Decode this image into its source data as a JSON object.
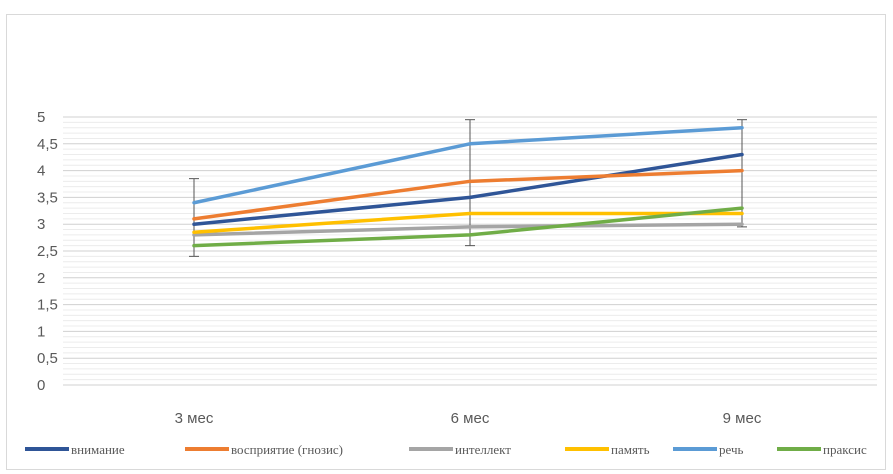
{
  "chart_data": {
    "type": "line",
    "title": "",
    "xlabel": "",
    "ylabel": "",
    "categories": [
      "3 мес",
      "6 мес",
      "9 мес"
    ],
    "ylim": [
      0,
      5
    ],
    "y_ticks": [
      "0",
      "0,5",
      "1",
      "1,5",
      "2",
      "2,5",
      "3",
      "3,5",
      "4",
      "4,5",
      "5"
    ],
    "grid": true,
    "error_bars": true,
    "legend_position": "bottom",
    "series": [
      {
        "name": "внимание",
        "color": "#2f5597",
        "values": [
          3.0,
          3.5,
          4.3
        ]
      },
      {
        "name": "восприятие (гнозис)",
        "color": "#ed7d31",
        "values": [
          3.1,
          3.8,
          4.0
        ]
      },
      {
        "name": "интеллект",
        "color": "#a5a5a5",
        "values": [
          2.8,
          2.95,
          3.0
        ]
      },
      {
        "name": "память",
        "color": "#ffc000",
        "values": [
          2.85,
          3.2,
          3.2
        ]
      },
      {
        "name": "речь",
        "color": "#5b9bd5",
        "values": [
          3.4,
          4.5,
          4.8
        ]
      },
      {
        "name": "праксис",
        "color": "#70ad47",
        "values": [
          2.6,
          2.8,
          3.3
        ]
      }
    ],
    "error_ranges": [
      {
        "category": "3 мес",
        "low": 2.4,
        "high": 3.85
      },
      {
        "category": "6 мес",
        "low": 2.6,
        "high": 4.95
      },
      {
        "category": "9 мес",
        "low": 2.95,
        "high": 4.95
      }
    ]
  }
}
